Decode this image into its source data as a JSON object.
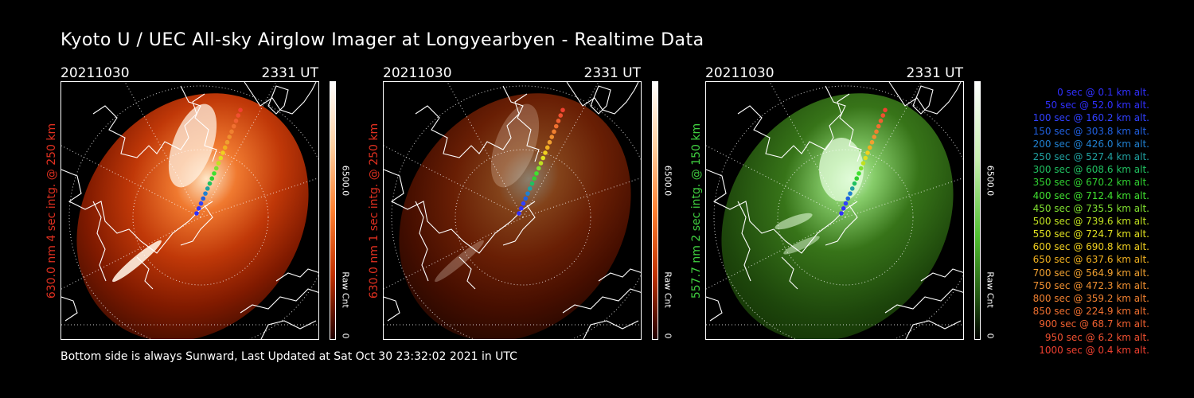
{
  "title": "Kyoto U / UEC All-sky Airglow Imager at Longyearbyen - Realtime Data",
  "footer": "Bottom side is always Sunward, Last Updated at Sat Oct 30 23:32:02 2021 in UTC",
  "panels": [
    {
      "date": "20211030",
      "time": "2331 UT",
      "label": "630.0 nm 4 sec intg. @ 250 km",
      "label_color": "#e03020",
      "cbar_max": "6500.0",
      "cbar_min": "0",
      "cbar_title": "Raw Cnt",
      "scheme": "red",
      "intensity": 1.0
    },
    {
      "date": "20211030",
      "time": "2331 UT",
      "label": "630.0 nm 1 sec intg. @ 250 km",
      "label_color": "#e03020",
      "cbar_max": "6500.0",
      "cbar_min": "0",
      "cbar_title": "Raw Cnt",
      "scheme": "red",
      "intensity": 0.3
    },
    {
      "date": "20211030",
      "time": "2331 UT",
      "label": "557.7 nm 2 sec intg. @ 150 km",
      "label_color": "#40d040",
      "cbar_max": "6500.0",
      "cbar_min": "0",
      "cbar_title": "Raw Cnt",
      "scheme": "green",
      "intensity": 0.8
    }
  ],
  "legend": [
    {
      "text": "0 sec @    0.1 km alt.",
      "color": "#3030ff"
    },
    {
      "text": "50 sec @   52.0 km alt.",
      "color": "#3030ff"
    },
    {
      "text": "100 sec @  160.2 km alt.",
      "color": "#3040ff"
    },
    {
      "text": "150 sec @  303.8 km alt.",
      "color": "#2060e0"
    },
    {
      "text": "200 sec @  426.0 km alt.",
      "color": "#2080d0"
    },
    {
      "text": "250 sec @  527.4 km alt.",
      "color": "#20a0a0"
    },
    {
      "text": "300 sec @  608.6 km alt.",
      "color": "#20c060"
    },
    {
      "text": "350 sec @  670.2 km alt.",
      "color": "#30d030"
    },
    {
      "text": "400 sec @  712.4 km alt.",
      "color": "#40e030"
    },
    {
      "text": "450 sec @  735.5 km alt.",
      "color": "#80e030"
    },
    {
      "text": "500 sec @  739.6 km alt.",
      "color": "#c0e020"
    },
    {
      "text": "550 sec @  724.7 km alt.",
      "color": "#e0e020"
    },
    {
      "text": "600 sec @  690.8 km alt.",
      "color": "#f0d020"
    },
    {
      "text": "650 sec @  637.6 km alt.",
      "color": "#f0b020"
    },
    {
      "text": "700 sec @  564.9 km alt.",
      "color": "#f0a030"
    },
    {
      "text": "750 sec @  472.3 km alt.",
      "color": "#f09030"
    },
    {
      "text": "800 sec @  359.2 km alt.",
      "color": "#f08030"
    },
    {
      "text": "850 sec @  224.9 km alt.",
      "color": "#f07030"
    },
    {
      "text": "900 sec @   68.7 km alt.",
      "color": "#f06030"
    },
    {
      "text": "950 sec @    6.2 km alt.",
      "color": "#f05030"
    },
    {
      "text": "1000 sec @    0.4 km alt.",
      "color": "#f04030"
    }
  ]
}
